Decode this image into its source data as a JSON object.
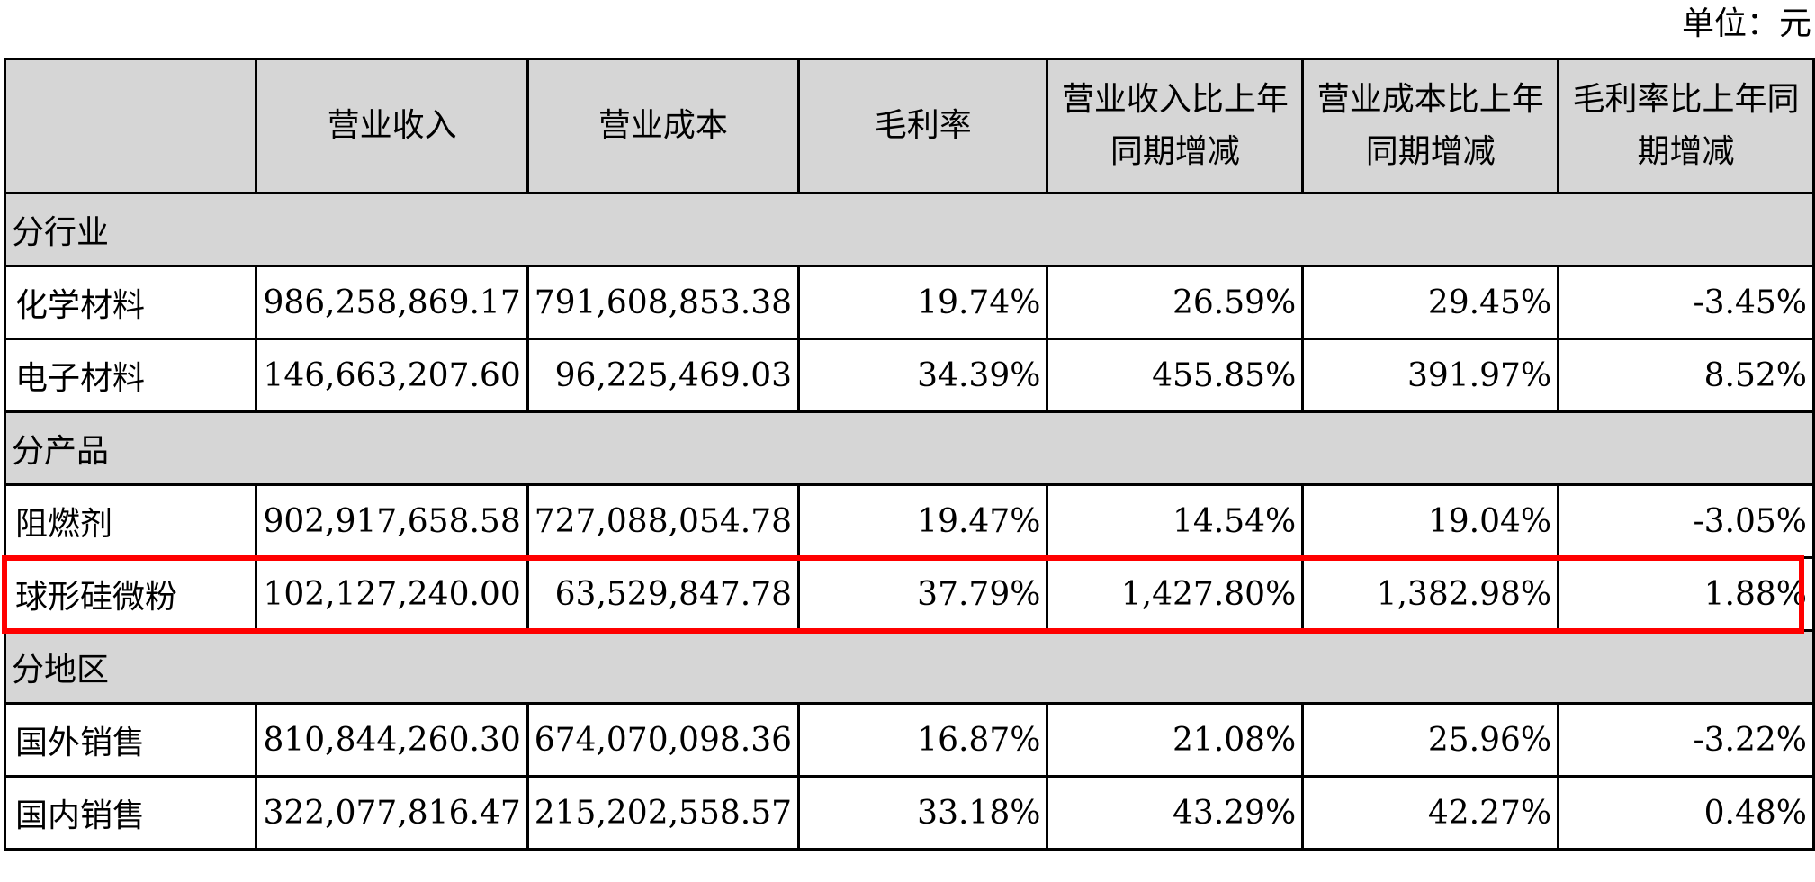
{
  "unit_label": "单位：元",
  "headers": {
    "col0": "",
    "col1": "营业收入",
    "col2": "营业成本",
    "col3": "毛利率",
    "col4_line1": "营业收入比上年",
    "col4_line2": "同期增减",
    "col5_line1": "营业成本比上年",
    "col5_line2": "同期增减",
    "col6_line1": "毛利率比上年同",
    "col6_line2": "期增减"
  },
  "sections": [
    {
      "title": "分行业",
      "rows": [
        {
          "label": "化学材料",
          "revenue": "986,258,869.17",
          "cost": "791,608,853.38",
          "margin": "19.74%",
          "rev_change": "26.59%",
          "cost_change": "29.45%",
          "margin_change": "-3.45%"
        },
        {
          "label": "电子材料",
          "revenue": "146,663,207.60",
          "cost": "96,225,469.03",
          "margin": "34.39%",
          "rev_change": "455.85%",
          "cost_change": "391.97%",
          "margin_change": "8.52%"
        }
      ]
    },
    {
      "title": "分产品",
      "rows": [
        {
          "label": "阻燃剂",
          "revenue": "902,917,658.58",
          "cost": "727,088,054.78",
          "margin": "19.47%",
          "rev_change": "14.54%",
          "cost_change": "19.04%",
          "margin_change": "-3.05%"
        },
        {
          "label": "球形硅微粉",
          "revenue": "102,127,240.00",
          "cost": "63,529,847.78",
          "margin": "37.79%",
          "rev_change": "1,427.80%",
          "cost_change": "1,382.98%",
          "margin_change": "1.88%"
        }
      ]
    },
    {
      "title": "分地区",
      "rows": [
        {
          "label": "国外销售",
          "revenue": "810,844,260.30",
          "cost": "674,070,098.36",
          "margin": "16.87%",
          "rev_change": "21.08%",
          "cost_change": "25.96%",
          "margin_change": "-3.22%"
        },
        {
          "label": "国内销售",
          "revenue": "322,077,816.47",
          "cost": "215,202,558.57",
          "margin": "33.18%",
          "rev_change": "43.29%",
          "cost_change": "42.27%",
          "margin_change": "0.48%"
        }
      ]
    }
  ],
  "highlight_color": "#ff0000",
  "header_bg": "#d6d6d6"
}
